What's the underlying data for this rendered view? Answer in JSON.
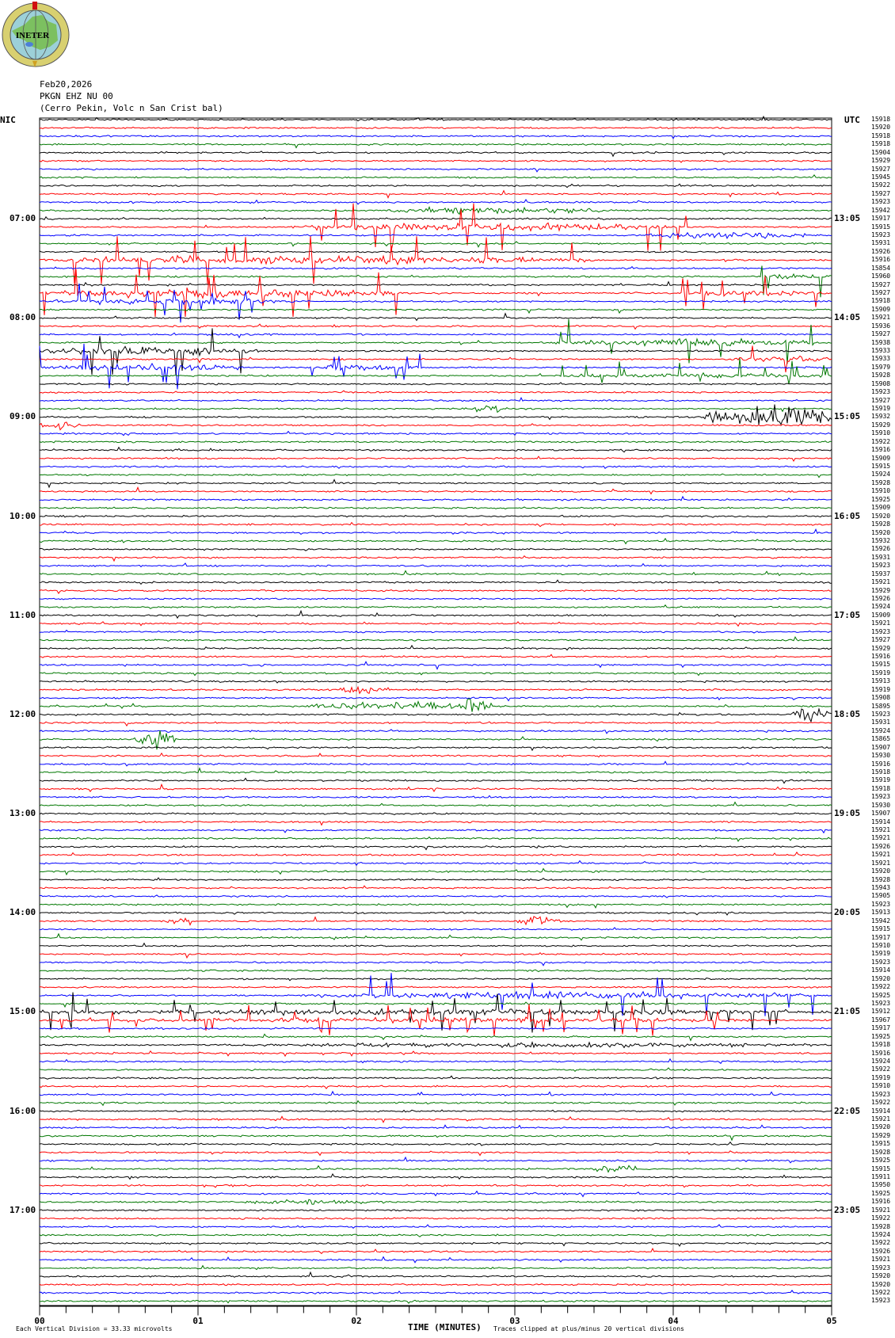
{
  "logo": {
    "text": "INETER"
  },
  "header": {
    "date": "Feb20,2026",
    "channel": "PKGN EHZ NU 00",
    "station": "(Cerro Pekin, Volc n San Crist bal)"
  },
  "left_axis_title": "NIC",
  "right_axis_title": "UTC",
  "colors": {
    "trace_cycle": [
      "#000000",
      "#ff0000",
      "#0000ff",
      "#007700"
    ],
    "grid": "#a0a0a0"
  },
  "chart_data": {
    "type": "line",
    "subtype": "helicorder",
    "minutes_per_row": 5,
    "row_count": 144,
    "xlabel": "TIME (MINUTES)",
    "xlim": [
      0,
      5
    ],
    "x_ticks": [
      "00",
      "01",
      "02",
      "03",
      "04",
      "05"
    ],
    "grid": "vertical lines each minute",
    "left_time_labels": [
      {
        "row": 12,
        "label": "07:00"
      },
      {
        "row": 24,
        "label": "08:00"
      },
      {
        "row": 36,
        "label": "09:00"
      },
      {
        "row": 48,
        "label": "10:00"
      },
      {
        "row": 60,
        "label": "11:00"
      },
      {
        "row": 72,
        "label": "12:00"
      },
      {
        "row": 84,
        "label": "13:00"
      },
      {
        "row": 96,
        "label": "14:00"
      },
      {
        "row": 108,
        "label": "15:00"
      },
      {
        "row": 120,
        "label": "16:00"
      },
      {
        "row": 132,
        "label": "17:00"
      }
    ],
    "right_time_labels": [
      {
        "row": 12,
        "label": "13:05"
      },
      {
        "row": 24,
        "label": "14:05"
      },
      {
        "row": 36,
        "label": "15:05"
      },
      {
        "row": 48,
        "label": "16:05"
      },
      {
        "row": 60,
        "label": "17:05"
      },
      {
        "row": 72,
        "label": "18:05"
      },
      {
        "row": 84,
        "label": "19:05"
      },
      {
        "row": 96,
        "label": "20:05"
      },
      {
        "row": 108,
        "label": "21:05"
      },
      {
        "row": 120,
        "label": "22:05"
      },
      {
        "row": 132,
        "label": "23:05"
      }
    ],
    "row_values": [
      "15918",
      "15920",
      "15918",
      "15918",
      "15904",
      "15929",
      "15927",
      "15945",
      "15922",
      "15927",
      "15923",
      "15942",
      "15917",
      "15915",
      "15923",
      "15931",
      "15926",
      "15916",
      "15854",
      "15960",
      "15927",
      "15927",
      "15918",
      "15909",
      "15921",
      "15936",
      "15927",
      "15938",
      "15933",
      "15933",
      "15979",
      "15928",
      "15908",
      "15923",
      "15927",
      "15919",
      "15932",
      "15929",
      "15910",
      "15922",
      "15916",
      "15909",
      "15915",
      "15924",
      "15928",
      "15910",
      "15925",
      "15909",
      "15920",
      "15928",
      "15920",
      "15932",
      "15926",
      "15931",
      "15923",
      "15937",
      "15921",
      "15929",
      "15926",
      "15924",
      "15909",
      "15921",
      "15923",
      "15927",
      "15929",
      "15916",
      "15915",
      "15919",
      "15913",
      "15919",
      "15908",
      "15895",
      "15923",
      "15931",
      "15924",
      "15865",
      "15907",
      "15930",
      "15916",
      "15918",
      "15919",
      "15918",
      "15923",
      "15930",
      "15907",
      "15914",
      "15921",
      "15921",
      "15926",
      "15921",
      "15921",
      "15920",
      "15928",
      "15943",
      "15905",
      "15923",
      "15913",
      "15942",
      "15915",
      "15917",
      "15910",
      "15919",
      "15923",
      "15914",
      "15920",
      "15922",
      "15925",
      "15923",
      "15912",
      "15967",
      "15917",
      "15925",
      "15918",
      "15916",
      "15924",
      "15922",
      "15919",
      "15910",
      "15923",
      "15922",
      "15914",
      "15921",
      "15920",
      "15929",
      "15915",
      "15928",
      "15925",
      "15915",
      "15911",
      "15950",
      "15925",
      "15916",
      "15921",
      "15922",
      "15928",
      "15924",
      "15922",
      "15926",
      "15921",
      "15923",
      "15920",
      "15920",
      "15922",
      "15923"
    ],
    "events": [
      {
        "row": 11,
        "start": 2.2,
        "end": 3.6,
        "amp": 3
      },
      {
        "row": 13,
        "start": 1.6,
        "end": 4.1,
        "amp": 7,
        "spiky": true
      },
      {
        "row": 14,
        "start": 3.8,
        "end": 4.85,
        "amp": 3
      },
      {
        "row": 17,
        "start": 0.0,
        "end": 3.5,
        "amp": 7,
        "spiky": true
      },
      {
        "row": 19,
        "start": 4.5,
        "end": 5.0,
        "amp": 5,
        "spiky": true
      },
      {
        "row": 21,
        "start": 0.0,
        "end": 2.3,
        "amp": 8,
        "spiky": true
      },
      {
        "row": 21,
        "start": 4.05,
        "end": 5.0,
        "amp": 5,
        "spiky": true
      },
      {
        "row": 22,
        "start": 0.1,
        "end": 1.6,
        "amp": 5,
        "spiky": true
      },
      {
        "row": 27,
        "start": 3.25,
        "end": 5.0,
        "amp": 6,
        "spiky": true
      },
      {
        "row": 28,
        "start": 0.0,
        "end": 1.4,
        "amp": 7,
        "spiky": true
      },
      {
        "row": 29,
        "start": 4.3,
        "end": 5.0,
        "amp": 5,
        "spiky": true
      },
      {
        "row": 30,
        "start": 0.0,
        "end": 1.3,
        "amp": 6,
        "spiky": true
      },
      {
        "row": 30,
        "start": 1.7,
        "end": 2.4,
        "amp": 5,
        "spiky": true
      },
      {
        "row": 31,
        "start": 3.3,
        "end": 5.0,
        "amp": 4,
        "spiky": true
      },
      {
        "row": 35,
        "start": 2.75,
        "end": 2.95,
        "amp": 4
      },
      {
        "row": 36,
        "start": 4.2,
        "end": 5.0,
        "amp": 12
      },
      {
        "row": 37,
        "start": 0.0,
        "end": 0.25,
        "amp": 3
      },
      {
        "row": 69,
        "start": 1.9,
        "end": 2.2,
        "amp": 4
      },
      {
        "row": 71,
        "start": 1.7,
        "end": 2.8,
        "amp": 4
      },
      {
        "row": 71,
        "start": 2.65,
        "end": 2.85,
        "amp": 9
      },
      {
        "row": 72,
        "start": 4.75,
        "end": 5.0,
        "amp": 6
      },
      {
        "row": 75,
        "start": 0.6,
        "end": 0.85,
        "amp": 9
      },
      {
        "row": 97,
        "start": 0.8,
        "end": 0.95,
        "amp": 6
      },
      {
        "row": 97,
        "start": 3.0,
        "end": 3.3,
        "amp": 5
      },
      {
        "row": 106,
        "start": 1.7,
        "end": 4.9,
        "amp": 6,
        "spiky": true
      },
      {
        "row": 108,
        "start": 0.0,
        "end": 5.0,
        "amp": 5,
        "spiky": true
      },
      {
        "row": 109,
        "start": 0.0,
        "end": 4.5,
        "amp": 4,
        "spiky": true
      },
      {
        "row": 112,
        "start": 1.4,
        "end": 5.0,
        "amp": 2
      },
      {
        "row": 127,
        "start": 3.5,
        "end": 3.8,
        "amp": 3
      },
      {
        "row": 131,
        "start": 1.3,
        "end": 2.2,
        "amp": 2
      }
    ]
  },
  "footer": {
    "scale_note": "Each Vertical Division =   33.33 microvolts",
    "clip_note": "Traces clipped at plus/minus 20 vertical divisions"
  }
}
